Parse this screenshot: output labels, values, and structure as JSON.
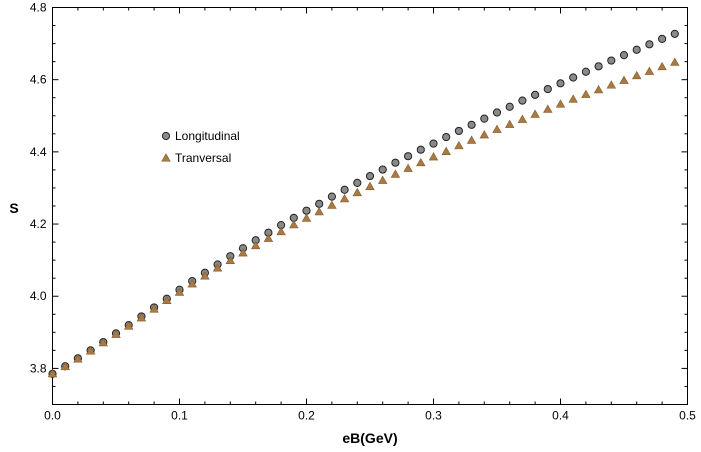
{
  "chart_data": {
    "type": "scatter",
    "title": "",
    "xlabel": "eB(GeV)",
    "ylabel": "S",
    "xlim": [
      0.0,
      0.5
    ],
    "ylim": [
      3.7,
      4.8
    ],
    "xticks": [
      "0.0",
      "0.1",
      "0.2",
      "0.3",
      "0.4",
      "0.5"
    ],
    "yticks": [
      "3.8",
      "4.0",
      "4.2",
      "4.4",
      "4.6",
      "4.8"
    ],
    "grid": false,
    "legend_position": "left-upper-middle",
    "x": [
      0.0,
      0.01,
      0.02,
      0.03,
      0.04,
      0.05,
      0.06,
      0.07,
      0.08,
      0.09,
      0.1,
      0.11,
      0.12,
      0.13,
      0.14,
      0.15,
      0.16,
      0.17,
      0.18,
      0.19,
      0.2,
      0.21,
      0.22,
      0.23,
      0.24,
      0.25,
      0.26,
      0.27,
      0.28,
      0.29,
      0.3,
      0.31,
      0.32,
      0.33,
      0.34,
      0.35,
      0.36,
      0.37,
      0.38,
      0.39,
      0.4,
      0.41,
      0.42,
      0.43,
      0.44,
      0.45,
      0.46,
      0.47,
      0.48,
      0.49
    ],
    "series": [
      {
        "name": "Longitudinal",
        "marker": "circle",
        "color": "#8a8a8a",
        "edge_color": "#222222",
        "values": [
          3.785,
          3.806,
          3.828,
          3.85,
          3.873,
          3.897,
          3.92,
          3.944,
          3.969,
          3.993,
          4.018,
          4.042,
          4.065,
          4.088,
          4.111,
          4.133,
          4.155,
          4.176,
          4.197,
          4.217,
          4.237,
          4.256,
          4.276,
          4.295,
          4.314,
          4.333,
          4.351,
          4.37,
          4.388,
          4.406,
          4.423,
          4.441,
          4.458,
          4.475,
          4.492,
          4.509,
          4.525,
          4.542,
          4.558,
          4.574,
          4.59,
          4.606,
          4.622,
          4.637,
          4.653,
          4.668,
          4.683,
          4.698,
          4.713,
          4.727
        ]
      },
      {
        "name": "Tranversal",
        "marker": "triangle",
        "color": "#a87a44",
        "edge_color": "#8a5a2a",
        "values": [
          3.785,
          3.805,
          3.826,
          3.848,
          3.871,
          3.894,
          3.917,
          3.94,
          3.964,
          3.988,
          4.011,
          4.034,
          4.056,
          4.078,
          4.099,
          4.12,
          4.14,
          4.16,
          4.179,
          4.198,
          4.216,
          4.234,
          4.252,
          4.27,
          4.287,
          4.304,
          4.321,
          4.338,
          4.354,
          4.37,
          4.386,
          4.401,
          4.417,
          4.432,
          4.447,
          4.462,
          4.476,
          4.49,
          4.504,
          4.518,
          4.532,
          4.546,
          4.559,
          4.572,
          4.585,
          4.598,
          4.611,
          4.623,
          4.636,
          4.648
        ]
      }
    ]
  }
}
